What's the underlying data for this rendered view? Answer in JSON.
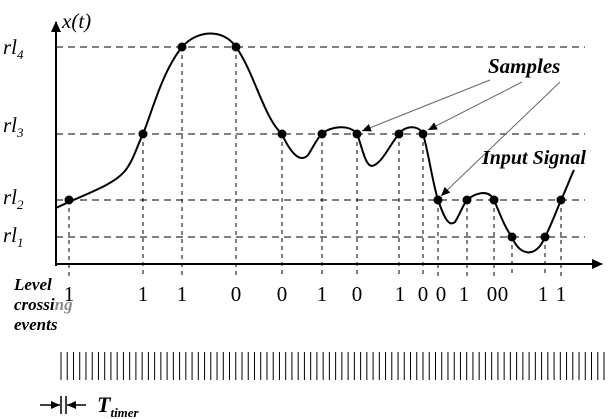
{
  "axis": {
    "y_label": "x(t)"
  },
  "levels": [
    {
      "base": "rl",
      "sub": "4"
    },
    {
      "base": "rl",
      "sub": "3"
    },
    {
      "base": "rl",
      "sub": "2"
    },
    {
      "base": "rl",
      "sub": "1"
    }
  ],
  "annotations": {
    "samples": "Samples",
    "input_signal": "Input Signal",
    "level_crossing_line1": "Level",
    "level_crossing_line2_a": "crossi",
    "level_crossing_line2_b": "ng",
    "level_crossing_line3": "events",
    "timer_base": "T",
    "timer_sub": "timer"
  },
  "events": [
    "1",
    "1",
    "1",
    "0",
    "0",
    "1",
    "0",
    "1",
    "0",
    "0",
    "1",
    "0",
    "0",
    "1",
    "1"
  ],
  "colors": {
    "ink": "#000000",
    "faded": "#8c8c8c"
  },
  "timer_tick_count": 88
}
